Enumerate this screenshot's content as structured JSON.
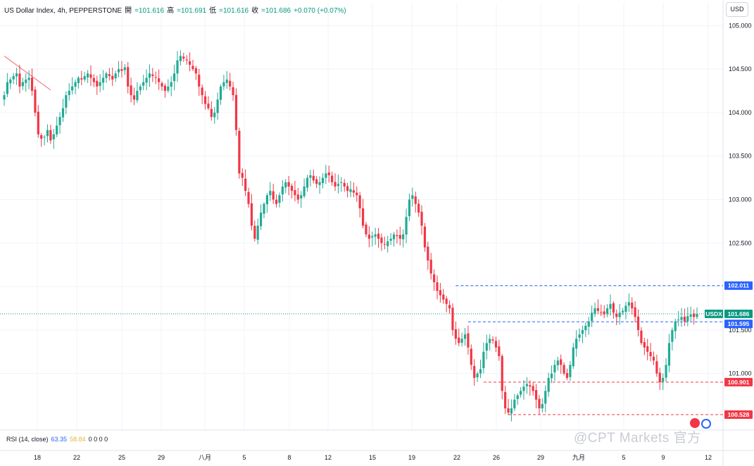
{
  "legend": {
    "symbol": "US Dollar Index, 4h, PEPPERSTONE",
    "open_label": "開",
    "open_value": "=101.616",
    "high_label": "高",
    "high_value": "=101.691",
    "low_label": "低",
    "low_value": "=101.616",
    "close_label": "收",
    "close_value": "=101.686",
    "change": "+0.070 (+0.07%)"
  },
  "currency": "USD",
  "rsi_legend": {
    "label": "RSI (14, close)",
    "value1": "63.35",
    "value2": "58.84",
    "extras": "0 0 0 0"
  },
  "watermark": "@CPT Markets 官方",
  "colors": {
    "up": "#22ab94",
    "down": "#f23645",
    "level_blue": "#2962ff",
    "level_red": "#f23645",
    "current_price_line": "#089981",
    "trendline": "#f77c80"
  },
  "chart_data": {
    "type": "candlestick",
    "y_axis": {
      "min": 100.35,
      "max": 105.1,
      "tick_labels": [
        "105.000",
        "104.500",
        "104.000",
        "103.500",
        "103.000",
        "102.500",
        "102.000",
        "101.500",
        "101.000"
      ],
      "tick_values": [
        105.0,
        104.5,
        104.0,
        103.5,
        103.0,
        102.5,
        102.0,
        101.5,
        101.0
      ]
    },
    "x_axis": {
      "tick_labels": [
        "18",
        "22",
        "25",
        "29",
        "八月",
        "5",
        "8",
        "12",
        "15",
        "19",
        "22",
        "26",
        "29",
        "九月",
        "5",
        "9",
        "12"
      ]
    },
    "price_labels": [
      {
        "text": "102.011",
        "value": 102.011,
        "kind": "blue"
      },
      {
        "text": "USDX",
        "value": 101.686,
        "kind": "current-tag"
      },
      {
        "text": "101.686",
        "value": 101.686,
        "kind": "current"
      },
      {
        "text": "101.595",
        "value": 101.595,
        "kind": "blue"
      },
      {
        "text": "100.901",
        "value": 100.901,
        "kind": "red"
      },
      {
        "text": "100.528",
        "value": 100.528,
        "kind": "red"
      }
    ],
    "horizontal_lines": [
      {
        "value": 102.011,
        "style": "dashed",
        "color": "blue",
        "start_index": 146
      },
      {
        "value": 101.595,
        "style": "dashed",
        "color": "blue",
        "start_index": 150
      },
      {
        "value": 101.686,
        "style": "dotted",
        "color": "green",
        "start_index": 0
      },
      {
        "value": 100.901,
        "style": "dashed",
        "color": "red",
        "start_index": 155
      },
      {
        "value": 100.528,
        "style": "dashed",
        "color": "red",
        "start_index": 163
      }
    ],
    "trendline": {
      "from": [
        0,
        104.65
      ],
      "to": [
        15,
        104.26
      ]
    },
    "candles_close": [
      104.2,
      104.35,
      104.38,
      104.42,
      104.45,
      104.3,
      104.35,
      104.38,
      104.4,
      104.25,
      104.0,
      103.75,
      103.7,
      103.72,
      103.8,
      103.68,
      103.75,
      103.85,
      103.95,
      104.05,
      104.2,
      104.25,
      104.3,
      104.35,
      104.4,
      104.38,
      104.42,
      104.45,
      104.4,
      104.35,
      104.3,
      104.35,
      104.4,
      104.45,
      104.42,
      104.38,
      104.45,
      104.5,
      104.48,
      104.52,
      104.3,
      104.2,
      104.15,
      104.25,
      104.3,
      104.35,
      104.4,
      104.45,
      104.42,
      104.4,
      104.35,
      104.3,
      104.25,
      104.3,
      104.35,
      104.45,
      104.6,
      104.65,
      104.62,
      104.6,
      104.55,
      104.5,
      104.45,
      104.3,
      104.2,
      104.1,
      104.05,
      103.95,
      104.0,
      104.15,
      104.3,
      104.35,
      104.38,
      104.3,
      104.2,
      103.8,
      103.3,
      103.25,
      103.1,
      102.95,
      102.7,
      102.55,
      102.7,
      102.85,
      102.95,
      103.05,
      103.1,
      103.0,
      102.95,
      103.05,
      103.15,
      103.2,
      103.15,
      103.1,
      103.05,
      103.0,
      103.05,
      103.15,
      103.25,
      103.28,
      103.22,
      103.18,
      103.2,
      103.25,
      103.3,
      103.28,
      103.2,
      103.15,
      103.18,
      103.2,
      103.15,
      103.1,
      103.12,
      103.08,
      103.05,
      102.9,
      102.7,
      102.6,
      102.55,
      102.58,
      102.6,
      102.55,
      102.5,
      102.48,
      102.52,
      102.55,
      102.6,
      102.58,
      102.55,
      102.6,
      102.8,
      103.0,
      103.05,
      102.95,
      102.85,
      102.7,
      102.45,
      102.3,
      102.15,
      102.05,
      101.95,
      101.9,
      101.85,
      101.8,
      101.75,
      101.5,
      101.4,
      101.35,
      101.4,
      101.45,
      101.3,
      101.1,
      100.95,
      101.0,
      101.05,
      101.25,
      101.35,
      101.4,
      101.38,
      101.3,
      101.2,
      100.8,
      100.6,
      100.55,
      100.6,
      100.7,
      100.75,
      100.8,
      100.85,
      100.88,
      100.85,
      100.8,
      100.7,
      100.6,
      100.65,
      100.8,
      100.95,
      101.0,
      101.1,
      101.15,
      101.1,
      101.0,
      100.95,
      101.1,
      101.3,
      101.4,
      101.45,
      101.5,
      101.55,
      101.6,
      101.7,
      101.75,
      101.72,
      101.7,
      101.68,
      101.75,
      101.8,
      101.7,
      101.65,
      101.7,
      101.72,
      101.78,
      101.82,
      101.75,
      101.65,
      101.5,
      101.35,
      101.3,
      101.25,
      101.2,
      101.15,
      101.0,
      100.9,
      100.95,
      101.1,
      101.35,
      101.5,
      101.6,
      101.62,
      101.65,
      101.6,
      101.66,
      101.68,
      101.65,
      101.686
    ]
  }
}
